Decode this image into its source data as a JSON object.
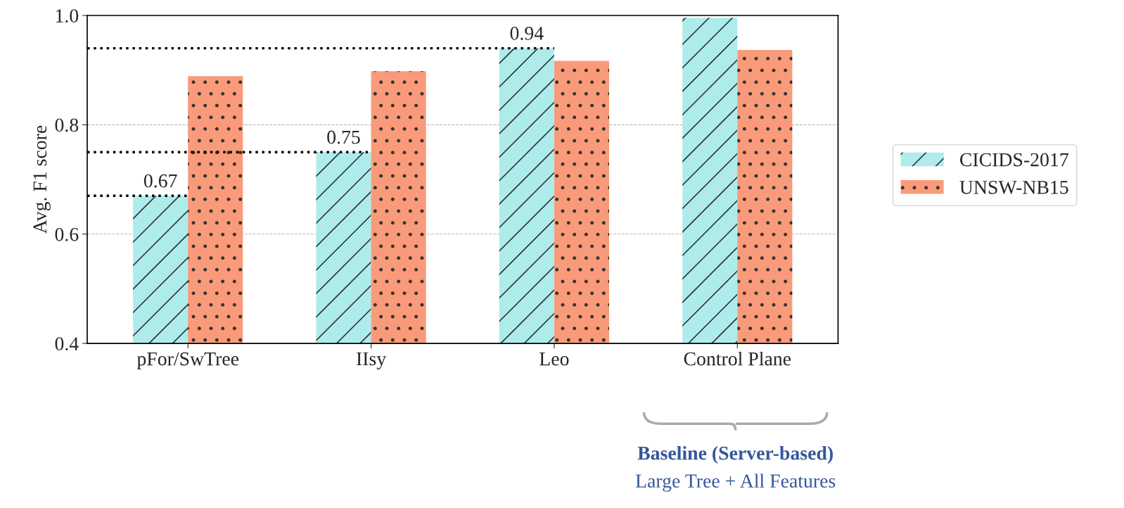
{
  "chart_data": {
    "type": "bar",
    "ylabel": "Avg. F1 score",
    "categories": [
      "pFor/SwTree",
      "IIsy",
      "Leo",
      "Control Plane"
    ],
    "series": [
      {
        "name": "CICIDS-2017",
        "color": "#aeecec",
        "values": [
          0.67,
          0.75,
          0.94,
          0.996
        ]
      },
      {
        "name": "UNSW-NB15",
        "color": "#f99b7a",
        "values": [
          0.889,
          0.898,
          0.917,
          0.937
        ]
      }
    ],
    "ylim": [
      0.4,
      1.0
    ],
    "yticks": [
      0.4,
      0.6,
      0.8,
      {
        "value": 1.0,
        "label": "1.0"
      }
    ],
    "grid": "y",
    "legend": "right",
    "ref_lines": [
      {
        "axis": "y",
        "value": 0.67,
        "label": "0.67",
        "line_style": "dotted"
      },
      {
        "axis": "y",
        "value": 0.75,
        "label": "0.75",
        "line_style": "dotted"
      },
      {
        "axis": "y",
        "value": 0.94,
        "label": "0.94",
        "line_style": "dotted"
      }
    ],
    "annotations": [
      "Baseline (Server-based)",
      "Large Tree + All Features"
    ]
  }
}
